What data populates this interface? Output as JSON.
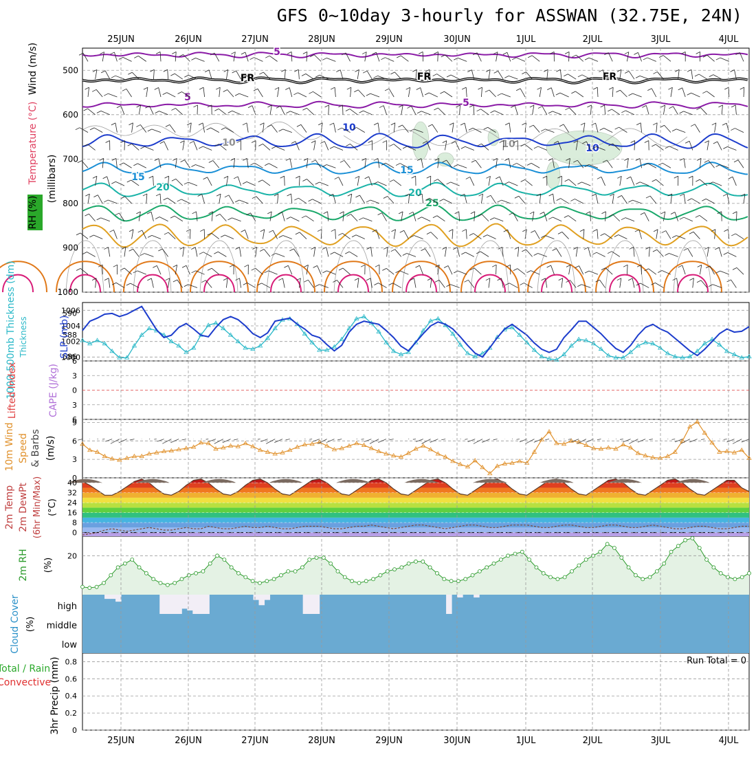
{
  "title": "GFS 0~10day 3-hourly for ASSWAN (32.75E, 24N)",
  "colors": {
    "frame": "#000000",
    "grid": "#9a9a9a",
    "temp_5": "#8a1aa6",
    "temp_10": "#1c3ccc",
    "temp_15": "#1a8fd6",
    "temp_20": "#19b3a8",
    "temp_25": "#19a86a",
    "temp_30": "#e0a020",
    "temp_35": "#e07818",
    "temp_40": "#d81c78",
    "rh": "#a8b8a8",
    "rh_fill": "#d6ecd8",
    "thickness": "#2ab8c8",
    "slp": "#1c3ccc",
    "lifted_index": "#e04040",
    "wind_speed": "#e0902a",
    "rh2m": "#2a9a2a",
    "rh2m_fill": "#e4f2e4",
    "cloud_bg": "#6aaad2",
    "cloud_bar": "#f2eef6",
    "barb": "#222222"
  },
  "x_axis": {
    "top_labels": [
      "25JUN",
      "26JUN",
      "27JUN",
      "28JUN",
      "29JUN",
      "30JUN",
      "1JUL",
      "2JUL",
      "3JUL",
      "4JUL"
    ],
    "bottom_labels": [
      "25JUN",
      "26JUN",
      "27JUN",
      "28JUN",
      "29JUN",
      "30JUN",
      "1JUL",
      "2JUL",
      "3JUL",
      "4JUL"
    ]
  },
  "panels": {
    "upper": {
      "label_wind": "Wind (m/s)",
      "label_temp": "Temperature (°C)",
      "label_rh": "RH (%)",
      "label_units": "(millibars)",
      "y_ticks": [
        "500",
        "600",
        "700",
        "800",
        "900",
        "1000"
      ],
      "fr_label": "FR"
    },
    "thickness": {
      "label_thick": "1000-500mb Thickness (dm)",
      "label_slp": "SLP (mb)",
      "left_ticks": [
        "590",
        "588",
        "586"
      ],
      "right_ticks": [
        "1006",
        "1004",
        "1002",
        "1000"
      ]
    },
    "cape": {
      "label_li": "Lifted Index",
      "label_cape": "CAPE (J/kg)",
      "ticks": [
        "6",
        "3",
        "0",
        "3",
        "6"
      ]
    },
    "wind10m": {
      "label_main": "10m Wind",
      "label_speed": "Speed",
      "label_barbs": "& Barbs",
      "label_units": "(m/s)",
      "ticks": [
        "9",
        "6",
        "3",
        "0"
      ]
    },
    "temp2m": {
      "label_temp": "2m Temp",
      "label_dew": "2m DewPt",
      "label_minmax": "(6hr Min/Max)",
      "label_units": "(°C)",
      "ticks": [
        "40",
        "32",
        "24",
        "16",
        "8",
        "0"
      ]
    },
    "rh2m": {
      "label_main": "2m RH",
      "label_units": "(%)",
      "ticks": [
        "20"
      ]
    },
    "cloud": {
      "label_main": "Cloud Cover",
      "label_units": "(%)",
      "levels": [
        "high",
        "middle",
        "low"
      ]
    },
    "precip": {
      "label_main": "3hr Precip (mm)",
      "label_total": "Total / Rain",
      "label_conv": "Convective",
      "ticks": [
        "0.8",
        "0.6",
        "0.4",
        "0.2",
        "0"
      ],
      "run_total": "Run Total = 0"
    }
  },
  "chart_data": [
    {
      "type": "line",
      "panel": "upper-air time-height section",
      "x": [
        "25JUN",
        "26JUN",
        "27JUN",
        "28JUN",
        "29JUN",
        "30JUN",
        "1JUL",
        "2JUL",
        "3JUL",
        "4JUL"
      ],
      "ylabel": "millibars",
      "ylim": [
        1000,
        450
      ],
      "contour_labels": [
        "5",
        "FR",
        "5",
        "10",
        "10",
        "10",
        "15",
        "15",
        "20",
        "20",
        "25"
      ],
      "isotherms_C": [
        5,
        0,
        5,
        10,
        15,
        20,
        25,
        30,
        35,
        40
      ]
    },
    {
      "type": "line",
      "panel": "thickness and SLP",
      "series": [
        {
          "name": "1000-500mb Thickness (dm)",
          "ylim": [
            585.6,
            591
          ],
          "values": [
            587.5,
            587.2,
            587.5,
            587.2,
            586.5,
            585.9,
            585.9,
            587.0,
            588.0,
            588.6,
            588.4,
            588.0,
            587.4,
            587.0,
            586.4,
            586.8,
            588.0,
            588.9,
            589.1,
            588.6,
            588.0,
            587.4,
            586.8,
            586.7,
            587.0,
            587.7,
            588.6,
            589.4,
            589.5,
            589.0,
            588.1,
            587.3,
            586.6,
            586.6,
            586.9,
            587.6,
            588.6,
            589.5,
            589.7,
            589.1,
            588.3,
            587.3,
            586.5,
            586.2,
            586.4,
            587.3,
            588.4,
            589.3,
            589.5,
            588.9,
            588.1,
            587.1,
            586.3,
            586.0,
            586.3,
            586.8,
            587.8,
            588.5,
            588.7,
            588.0,
            587.3,
            586.6,
            586.0,
            585.8,
            585.7,
            586.2,
            587.0,
            587.6,
            587.5,
            587.2,
            586.7,
            586.1,
            585.9,
            585.9,
            586.4,
            587.0,
            587.3,
            587.2,
            586.8,
            586.3,
            586.0,
            585.9,
            586.0,
            586.5,
            587.2,
            587.6,
            587.1,
            586.5,
            586.2,
            585.9,
            586.0
          ]
        },
        {
          "name": "SLP (mb)",
          "ylim": [
            999.5,
            1007
          ],
          "values": [
            1003.4,
            1004.6,
            1005.0,
            1005.5,
            1005.6,
            1005.2,
            1005.5,
            1006.0,
            1006.5,
            1005.0,
            1003.5,
            1002.5,
            1002.8,
            1003.8,
            1004.3,
            1003.6,
            1002.8,
            1002.6,
            1003.8,
            1004.8,
            1005.2,
            1004.8,
            1004.0,
            1003.0,
            1002.5,
            1003.1,
            1004.6,
            1004.8,
            1005.0,
            1004.2,
            1003.6,
            1002.8,
            1002.5,
            1001.6,
            1000.8,
            1001.5,
            1003.2,
            1004.2,
            1004.6,
            1004.4,
            1004.2,
            1003.4,
            1002.5,
            1001.4,
            1000.8,
            1001.9,
            1003.0,
            1004.0,
            1004.5,
            1004.2,
            1003.6,
            1002.6,
            1001.5,
            1000.5,
            1000.0,
            1001.2,
            1002.5,
            1003.6,
            1004.2,
            1003.5,
            1002.8,
            1001.8,
            1001.0,
            1000.6,
            1001.0,
            1002.5,
            1003.5,
            1004.6,
            1004.6,
            1003.8,
            1003.0,
            1002.0,
            1001.1,
            1000.6,
            1001.5,
            1002.8,
            1003.8,
            1004.2,
            1003.6,
            1003.2,
            1002.4,
            1001.6,
            1000.8,
            1000.2,
            1001.0,
            1002.0,
            1003.0,
            1003.6,
            1003.2,
            1003.3,
            1003.9
          ]
        }
      ]
    },
    {
      "type": "line",
      "panel": "Lifted Index / CAPE",
      "ylim": [
        -6,
        6
      ],
      "series": [
        {
          "name": "Lifted Index",
          "values": [
            0
          ]
        }
      ]
    },
    {
      "type": "line",
      "panel": "10m wind speed",
      "ylim": [
        0,
        9.5
      ],
      "values": [
        5.5,
        4.5,
        4.2,
        3.5,
        3.1,
        2.9,
        3.2,
        3.5,
        3.5,
        3.9,
        4.1,
        4.3,
        4.4,
        4.6,
        4.8,
        5.0,
        5.7,
        5.6,
        4.7,
        4.9,
        5.2,
        5.1,
        5.6,
        5.1,
        4.5,
        4.2,
        3.9,
        4.1,
        4.5,
        5.0,
        5.4,
        5.5,
        5.8,
        5.2,
        4.6,
        4.8,
        5.2,
        5.6,
        5.3,
        4.8,
        4.3,
        3.9,
        3.6,
        3.4,
        4.0,
        4.7,
        5.2,
        4.6,
        3.9,
        3.4,
        2.7,
        2.2,
        1.8,
        2.8,
        1.7,
        0.7,
        1.9,
        2.3,
        2.4,
        2.7,
        2.4,
        4.2,
        6.2,
        7.5,
        5.6,
        5.5,
        6.0,
        5.8,
        5.3,
        4.8,
        4.7,
        4.9,
        4.7,
        5.4,
        4.9,
        4.0,
        3.6,
        3.3,
        3.2,
        3.5,
        4.2,
        6.0,
        8.3,
        9.1,
        7.3,
        5.7,
        4.2,
        4.3,
        4.1,
        4.5,
        3.2
      ]
    },
    {
      "type": "area",
      "panel": "2m temperature and dewpoint",
      "ylim": [
        -3,
        44
      ],
      "series": [
        {
          "name": "2m Temp",
          "values": [
            41,
            38,
            34,
            30,
            30,
            33,
            37,
            41,
            43,
            40,
            35,
            31,
            30,
            33,
            38,
            42,
            43,
            40,
            35,
            31,
            30,
            33,
            38,
            42,
            43,
            40,
            35,
            31,
            30,
            34,
            38,
            42,
            43,
            40,
            35,
            31,
            30,
            34,
            38,
            42,
            43,
            40,
            35,
            31,
            30,
            34,
            38,
            42,
            43,
            40,
            35,
            31,
            30,
            34,
            38,
            42,
            43,
            40,
            35,
            31,
            30,
            34,
            38,
            42,
            43,
            40,
            35,
            31,
            30,
            34,
            38,
            42,
            43,
            40,
            35,
            31,
            30,
            34,
            38,
            42,
            43,
            40,
            35,
            31,
            30,
            34,
            38,
            42,
            42,
            36,
            33
          ]
        },
        {
          "name": "2m DewPt",
          "values": [
            -2,
            -1,
            0,
            2,
            3,
            2,
            1,
            2,
            3,
            4,
            3,
            2,
            2,
            3,
            4,
            3,
            3,
            5,
            4,
            3,
            3,
            4,
            5,
            4,
            4,
            5,
            4,
            3,
            3,
            4,
            5,
            5,
            5,
            4,
            3,
            3,
            4,
            5,
            5,
            6,
            5,
            4,
            3,
            4,
            5,
            6,
            6,
            5,
            4,
            3,
            4,
            5,
            6,
            6,
            5,
            4,
            4,
            5,
            6,
            6,
            6,
            5,
            4,
            4,
            5,
            6,
            6,
            5,
            4,
            4,
            5,
            6,
            6,
            5,
            4,
            4,
            5,
            6,
            5,
            4,
            3,
            3,
            4,
            5,
            5,
            4,
            3,
            3,
            4,
            5,
            5
          ]
        }
      ]
    },
    {
      "type": "area",
      "panel": "2m relative humidity",
      "ylabel": "%",
      "ylim": [
        0,
        30
      ],
      "values": [
        4,
        3.5,
        4,
        6,
        10,
        14,
        16,
        18,
        14,
        11,
        8,
        6,
        5,
        6,
        8,
        10,
        11,
        12,
        16,
        20,
        18,
        14,
        11,
        9,
        7,
        6,
        7,
        8,
        10,
        12,
        12,
        14,
        18,
        19,
        19,
        16,
        12,
        9,
        7,
        6,
        7,
        8,
        10,
        12,
        13,
        14,
        16,
        17,
        17,
        14,
        11,
        8,
        7,
        7,
        8,
        10,
        12,
        14,
        16,
        18,
        20,
        21,
        22,
        18,
        14,
        11,
        9,
        8,
        9,
        12,
        15,
        18,
        20,
        22,
        26,
        24,
        19,
        14,
        10,
        8,
        9,
        12,
        16,
        22,
        25,
        28,
        29,
        24,
        18,
        14,
        11,
        9,
        8,
        9,
        11
      ]
    },
    {
      "type": "bar",
      "panel": "cloud cover",
      "series": [
        {
          "name": "high",
          "values": [
            0,
            0,
            0,
            0,
            12,
            12,
            20,
            0,
            0,
            0,
            0,
            0,
            0,
            0,
            55,
            55,
            55,
            55,
            40,
            45,
            55,
            55,
            55,
            0,
            0,
            0,
            0,
            0,
            0,
            0,
            0,
            15,
            30,
            15,
            0,
            0,
            0,
            0,
            0,
            0,
            55,
            55,
            55,
            0,
            0,
            0,
            0,
            0,
            0,
            0,
            0,
            0,
            0,
            0,
            0,
            0,
            0,
            0,
            0,
            0,
            0,
            0,
            0,
            0,
            0,
            0,
            55,
            0,
            8,
            0,
            0,
            8,
            0,
            0,
            0,
            0,
            0,
            0,
            0,
            0,
            0,
            0,
            0,
            0,
            0,
            0,
            0,
            0,
            0,
            0,
            0,
            0,
            0,
            0,
            0,
            0,
            0,
            0,
            0,
            0,
            0,
            0,
            0,
            0,
            0,
            0,
            0,
            0,
            0,
            0,
            0,
            0,
            0,
            0,
            0,
            0,
            0,
            0,
            0,
            0,
            0
          ]
        }
      ]
    },
    {
      "type": "bar",
      "panel": "3hr precipitation",
      "ylim": [
        0,
        0.9
      ],
      "values": [
        0
      ]
    }
  ]
}
